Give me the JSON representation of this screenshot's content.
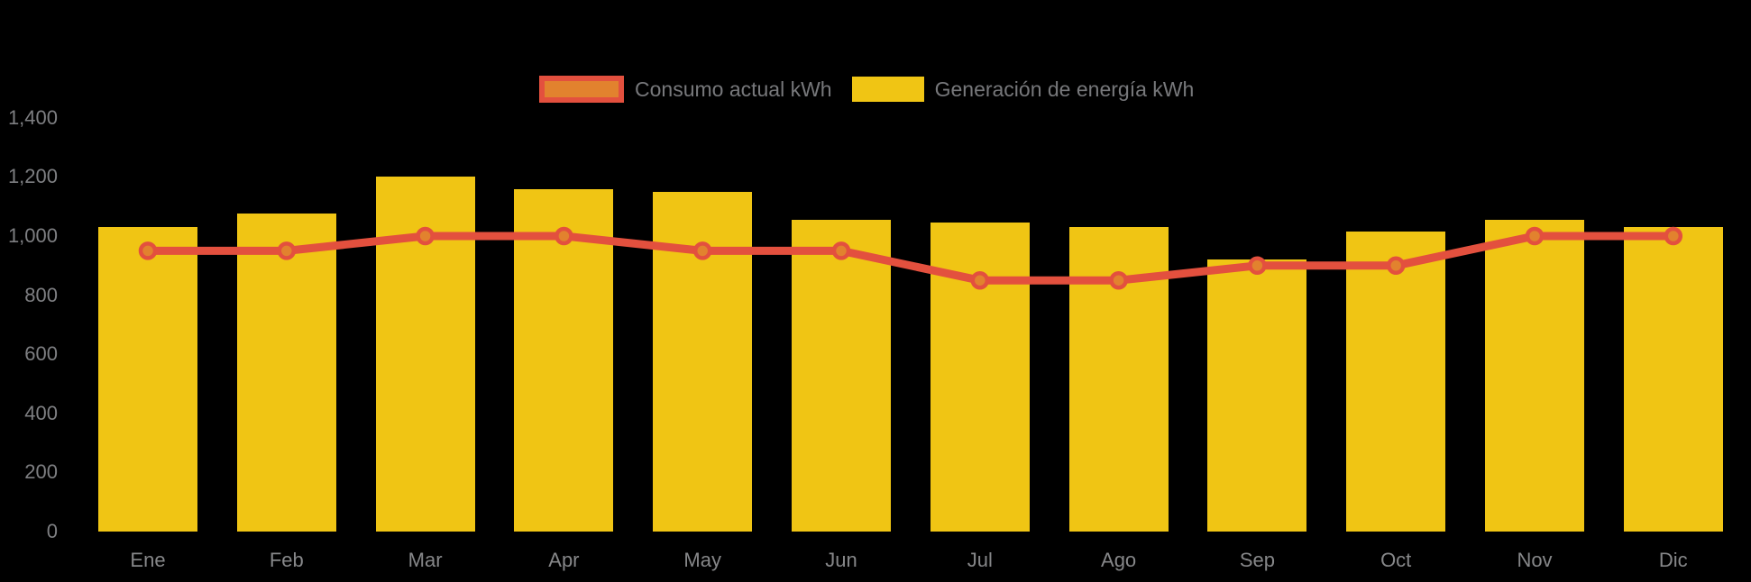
{
  "chart_data": {
    "type": "bar",
    "title": "",
    "categories": [
      "Ene",
      "Feb",
      "Mar",
      "Apr",
      "May",
      "Jun",
      "Jul",
      "Ago",
      "Sep",
      "Oct",
      "Nov",
      "Dic"
    ],
    "series": [
      {
        "name": "Consumo actual kWh",
        "type": "line",
        "color": "#E3503E",
        "marker_color": "#E2822E",
        "values": [
          950,
          950,
          1000,
          1000,
          950,
          950,
          850,
          850,
          900,
          900,
          1000,
          1000
        ]
      },
      {
        "name": "Generación de energía kWh",
        "type": "bar",
        "color": "#F0C514",
        "values": [
          1030,
          1075,
          1200,
          1160,
          1150,
          1055,
          1045,
          1030,
          920,
          1015,
          1055,
          1030
        ]
      }
    ],
    "ylim": [
      0,
      1400
    ],
    "yticks": [
      {
        "label": "0",
        "value": 0
      },
      {
        "label": "200",
        "value": 200
      },
      {
        "label": "400",
        "value": 400
      },
      {
        "label": "600",
        "value": 600
      },
      {
        "label": "800",
        "value": 800
      },
      {
        "label": "1,000",
        "value": 1000
      },
      {
        "label": "1,200",
        "value": 1200
      },
      {
        "label": "1,400",
        "value": 1400
      }
    ],
    "grid": false,
    "legend_position": "top-center",
    "background_color": "#000000",
    "axis_text_color": "#7E7F82"
  }
}
